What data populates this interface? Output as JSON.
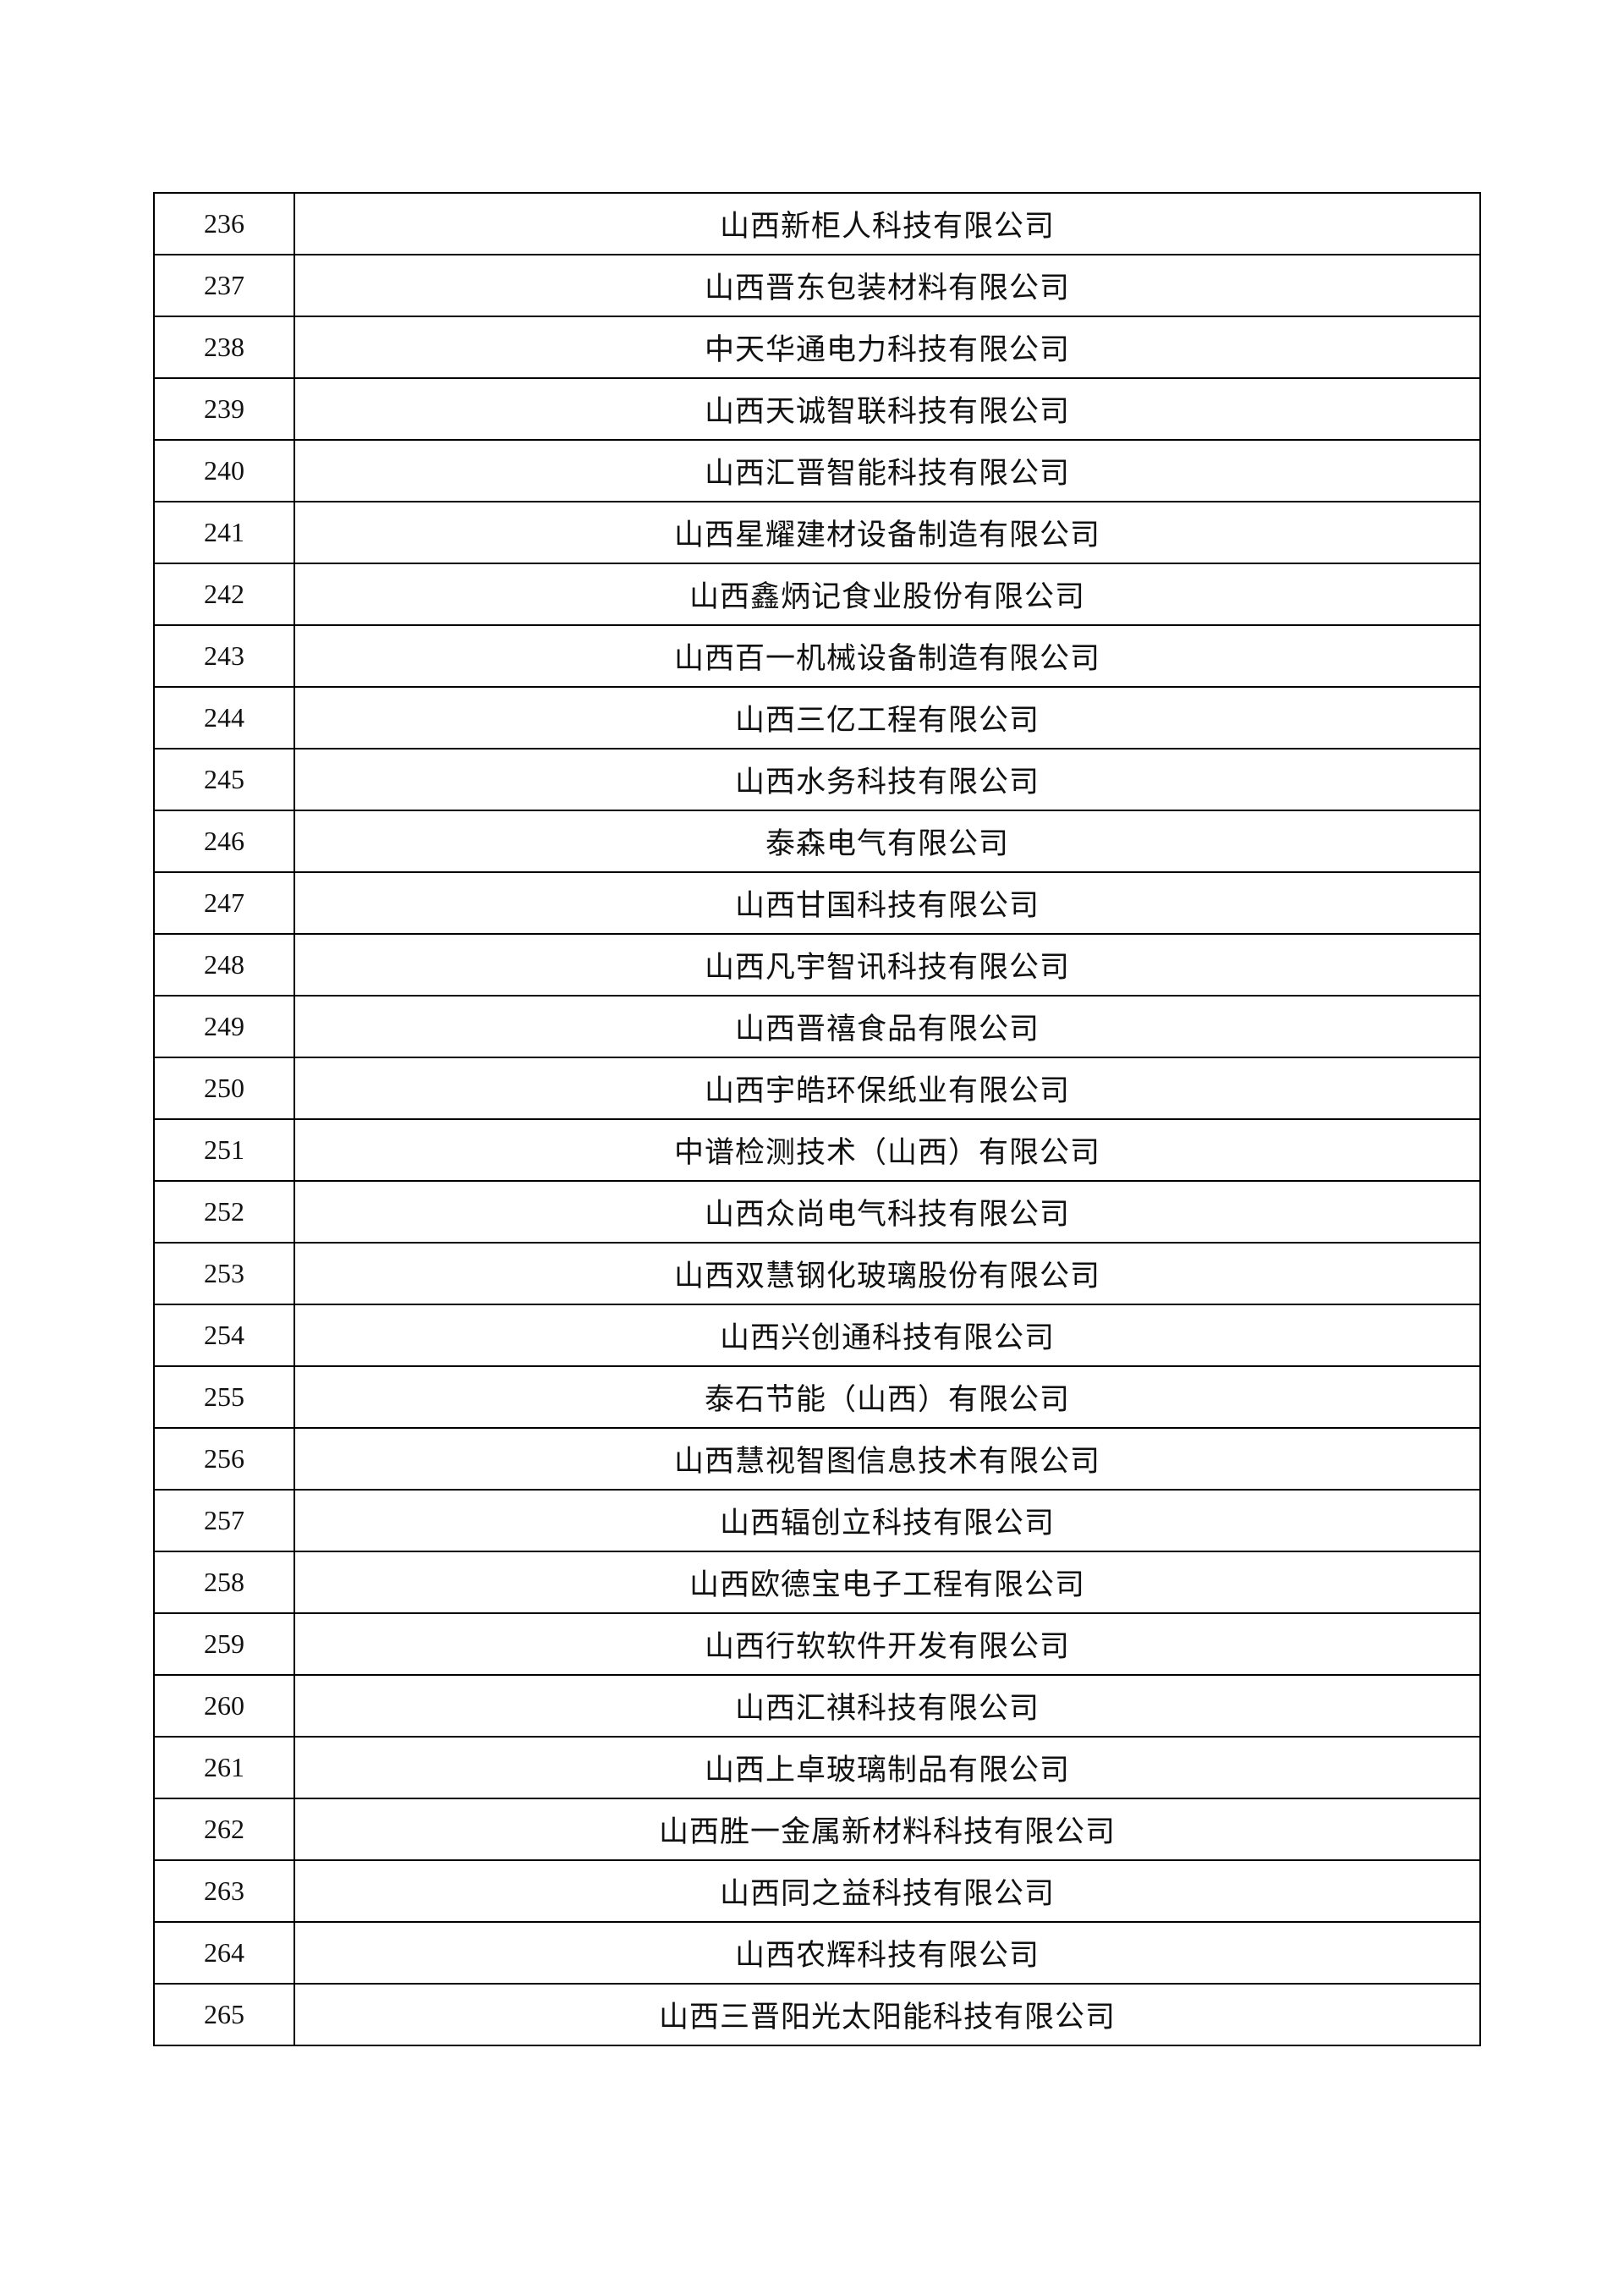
{
  "rows": [
    {
      "no": "236",
      "name": "山西新柜人科技有限公司"
    },
    {
      "no": "237",
      "name": "山西晋东包装材料有限公司"
    },
    {
      "no": "238",
      "name": "中天华通电力科技有限公司"
    },
    {
      "no": "239",
      "name": "山西天诚智联科技有限公司"
    },
    {
      "no": "240",
      "name": "山西汇晋智能科技有限公司"
    },
    {
      "no": "241",
      "name": "山西星耀建材设备制造有限公司"
    },
    {
      "no": "242",
      "name": "山西鑫炳记食业股份有限公司"
    },
    {
      "no": "243",
      "name": "山西百一机械设备制造有限公司"
    },
    {
      "no": "244",
      "name": "山西三亿工程有限公司"
    },
    {
      "no": "245",
      "name": "山西水务科技有限公司"
    },
    {
      "no": "246",
      "name": "泰森电气有限公司"
    },
    {
      "no": "247",
      "name": "山西甘国科技有限公司"
    },
    {
      "no": "248",
      "name": "山西凡宇智讯科技有限公司"
    },
    {
      "no": "249",
      "name": "山西晋禧食品有限公司"
    },
    {
      "no": "250",
      "name": "山西宇皓环保纸业有限公司"
    },
    {
      "no": "251",
      "name": "中谱检测技术（山西）有限公司"
    },
    {
      "no": "252",
      "name": "山西众尚电气科技有限公司"
    },
    {
      "no": "253",
      "name": "山西双慧钢化玻璃股份有限公司"
    },
    {
      "no": "254",
      "name": "山西兴创通科技有限公司"
    },
    {
      "no": "255",
      "name": "泰石节能（山西）有限公司"
    },
    {
      "no": "256",
      "name": "山西慧视智图信息技术有限公司"
    },
    {
      "no": "257",
      "name": "山西辐创立科技有限公司"
    },
    {
      "no": "258",
      "name": "山西欧德宝电子工程有限公司"
    },
    {
      "no": "259",
      "name": "山西行软软件开发有限公司"
    },
    {
      "no": "260",
      "name": "山西汇祺科技有限公司"
    },
    {
      "no": "261",
      "name": "山西上卓玻璃制品有限公司"
    },
    {
      "no": "262",
      "name": "山西胜一金属新材料科技有限公司"
    },
    {
      "no": "263",
      "name": "山西同之益科技有限公司"
    },
    {
      "no": "264",
      "name": "山西农辉科技有限公司"
    },
    {
      "no": "265",
      "name": "山西三晋阳光太阳能科技有限公司"
    }
  ]
}
